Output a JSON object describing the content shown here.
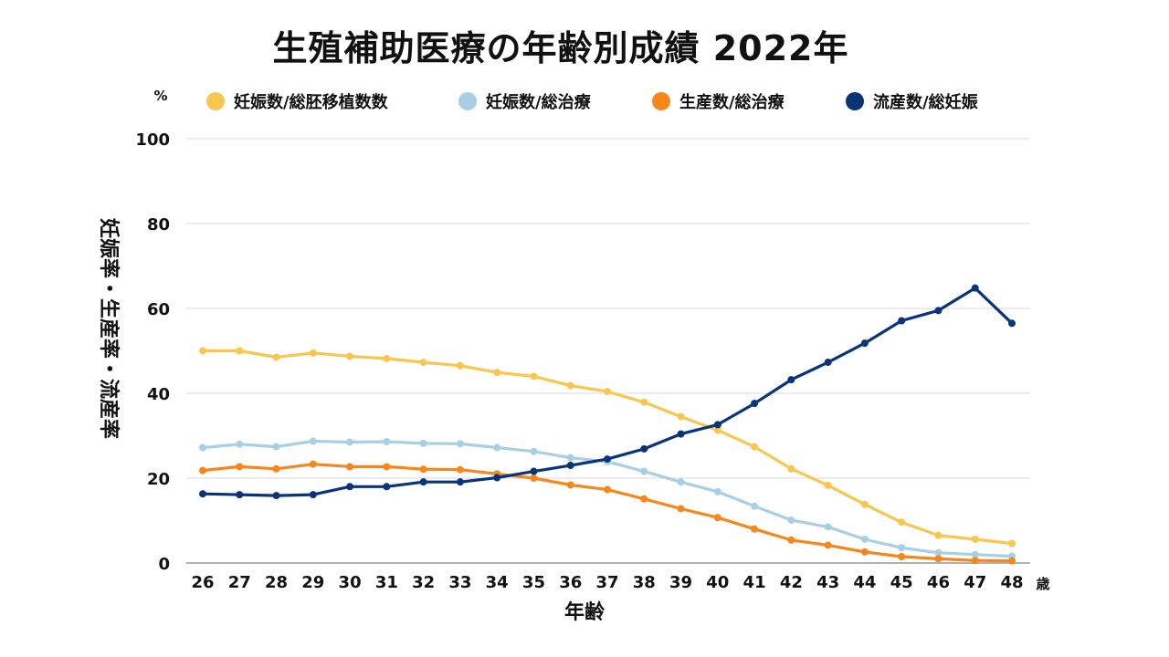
{
  "chart_data": {
    "type": "line",
    "title": "生殖補助医療の年齢別成績 2022年",
    "xlabel": "年齢",
    "ylabel": "妊娠率・生産率・流産率",
    "y_unit": "%",
    "x_unit": "歳",
    "ylim": [
      0,
      100
    ],
    "yticks": [
      "0",
      "20",
      "40",
      "60",
      "80",
      "100"
    ],
    "legend_position": "top",
    "categories": [
      "26",
      "27",
      "28",
      "29",
      "30",
      "31",
      "32",
      "33",
      "34",
      "35",
      "36",
      "37",
      "38",
      "39",
      "40",
      "41",
      "42",
      "43",
      "44",
      "45",
      "46",
      "47",
      "48"
    ],
    "series": [
      {
        "name": "妊娠数/総胚移植数数",
        "color": "#f9c74f",
        "values": [
          50.0,
          50.0,
          48.5,
          49.5,
          48.7,
          48.2,
          47.3,
          46.5,
          44.9,
          44.0,
          41.8,
          40.4,
          37.9,
          34.5,
          31.3,
          27.4,
          22.2,
          18.3,
          13.8,
          9.6,
          6.5,
          5.6,
          4.6
        ]
      },
      {
        "name": "妊娠数/総治療",
        "color": "#a8cfe3",
        "values": [
          27.2,
          28.0,
          27.4,
          28.7,
          28.5,
          28.6,
          28.2,
          28.1,
          27.2,
          26.3,
          24.8,
          23.9,
          21.6,
          19.1,
          16.8,
          13.4,
          10.1,
          8.5,
          5.6,
          3.6,
          2.4,
          2.0,
          1.6
        ]
      },
      {
        "name": "生産数/総治療",
        "color": "#f7861b",
        "values": [
          21.8,
          22.7,
          22.2,
          23.3,
          22.7,
          22.7,
          22.1,
          22.0,
          21.0,
          20.0,
          18.4,
          17.3,
          15.1,
          12.8,
          10.7,
          8.0,
          5.4,
          4.2,
          2.6,
          1.5,
          1.0,
          0.6,
          0.5
        ]
      },
      {
        "name": "流産数/総妊娠",
        "color": "#0a347a",
        "values": [
          16.3,
          16.1,
          15.9,
          16.1,
          18.0,
          18.0,
          19.1,
          19.1,
          20.1,
          21.6,
          23.0,
          24.5,
          26.9,
          30.4,
          32.6,
          37.6,
          43.2,
          47.3,
          51.8,
          57.1,
          59.5,
          64.8,
          56.5
        ]
      }
    ]
  }
}
